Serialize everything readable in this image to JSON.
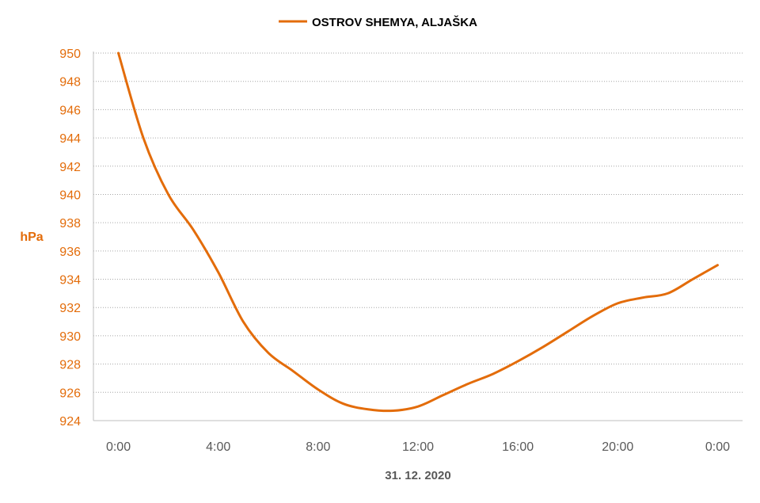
{
  "chart_data": {
    "type": "line",
    "series": [
      {
        "name": "OSTROV SHEMYA, ALJAŠKA",
        "color": "#E36C0A",
        "x": [
          0,
          1,
          2,
          3,
          4,
          5,
          6,
          7,
          8,
          9,
          10,
          11,
          12,
          13,
          14,
          15,
          16,
          17,
          18,
          19,
          20,
          21,
          22,
          23,
          24
        ],
        "values": [
          950,
          944,
          940,
          937.5,
          934.5,
          931,
          928.8,
          927.5,
          926.2,
          925.2,
          924.8,
          924.7,
          925.0,
          925.8,
          926.6,
          927.3,
          928.2,
          929.2,
          930.3,
          931.4,
          932.3,
          932.7,
          933.0,
          934.0,
          935.0
        ]
      }
    ],
    "x_tick_labels": [
      "0:00",
      "4:00",
      "8:00",
      "12:00",
      "16:00",
      "20:00",
      "0:00"
    ],
    "x_tick_positions": [
      0,
      4,
      8,
      12,
      16,
      20,
      24
    ],
    "y_ticks": [
      924,
      926,
      928,
      930,
      932,
      934,
      936,
      938,
      940,
      942,
      944,
      946,
      948,
      950
    ],
    "ylim": [
      924,
      950
    ],
    "xlim": [
      -1,
      25
    ],
    "ylabel": "hPa",
    "xlabel": "31. 12. 2020",
    "legend_position": "top-center",
    "grid": "horizontal-dotted",
    "colors": {
      "line": "#E36C0A",
      "y_tick": "#E36C0A",
      "x_tick": "#595959",
      "axis": "#BFBFBF",
      "grid": "#A6A6A6"
    }
  }
}
